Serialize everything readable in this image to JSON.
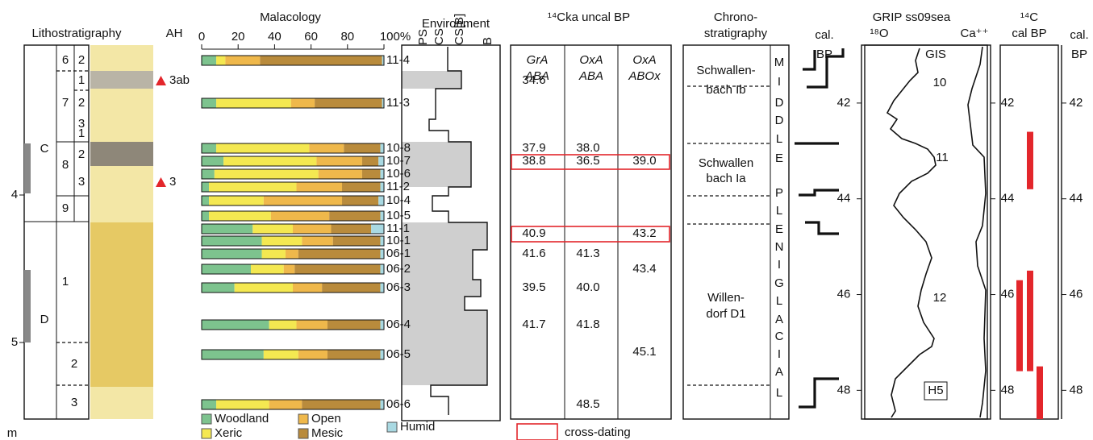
{
  "lithostratigraphy": {
    "title": "Lithostratigraphy",
    "ah_title": "AH",
    "depth_ticks": [
      4,
      5
    ],
    "depth_unit": "m",
    "units": [
      "C",
      "D"
    ],
    "layers": [
      "6",
      "7",
      "8",
      "9",
      "1",
      "2",
      "3"
    ],
    "sublayers": [
      "2",
      "1",
      "2",
      "3",
      "1",
      "2",
      "3"
    ],
    "ah": [
      "3ab",
      "3"
    ]
  },
  "chart_data": {
    "type": "bar",
    "title": "Malacology",
    "orientation": "horizontal",
    "stacked": true,
    "categories": [
      "11-4",
      "11-3",
      "10-8",
      "10-7",
      "10-6",
      "11-2",
      "10-4",
      "10-5",
      "11-1",
      "10-1",
      "06-1",
      "06-2",
      "06-3",
      "06-4",
      "06-5",
      "06-6"
    ],
    "series": [
      {
        "name": "Woodland",
        "color": "#7dc38e",
        "values": [
          8,
          8,
          8,
          12,
          7,
          4,
          4,
          4,
          28,
          33,
          33,
          27,
          18,
          37,
          34,
          8
        ]
      },
      {
        "name": "Xeric",
        "color": "#f4e851",
        "values": [
          5,
          41,
          51,
          51,
          57,
          48,
          30,
          34,
          22,
          22,
          13,
          18,
          32,
          15,
          19,
          29
        ]
      },
      {
        "name": "Open",
        "color": "#efb84b",
        "values": [
          19,
          13,
          19,
          25,
          24,
          25,
          43,
          32,
          21,
          17,
          7,
          6,
          16,
          17,
          16,
          18
        ]
      },
      {
        "name": "Mesic",
        "color": "#b98b3c",
        "values": [
          67,
          37,
          20,
          9,
          10,
          21,
          20,
          28,
          22,
          26,
          45,
          47,
          32,
          29,
          29,
          43
        ]
      },
      {
        "name": "Humid",
        "color": "#a9d9e2",
        "values": [
          1,
          1,
          2,
          3,
          2,
          2,
          3,
          2,
          7,
          2,
          2,
          2,
          2,
          2,
          2,
          2
        ]
      }
    ],
    "xlim": [
      0,
      100
    ],
    "xticks": [
      0,
      20,
      40,
      60,
      80,
      {
        "value": 100,
        "label": "100%"
      }
    ]
  },
  "environment": {
    "title": "Environment",
    "classes": [
      "PS",
      "CS",
      "CS[B]",
      "B"
    ]
  },
  "radiocarbon": {
    "title": "¹⁴Cka uncal BP",
    "columns": [
      [
        "GrA",
        "ABA"
      ],
      [
        "OxA",
        "ABA"
      ],
      [
        "OxA",
        "ABOx"
      ]
    ],
    "column_colors": [
      "#111111",
      "#111111",
      "#e3262b"
    ],
    "rows": [
      [
        34.6,
        null,
        null
      ],
      [
        37.9,
        38.0,
        null
      ],
      [
        38.8,
        36.5,
        39.0
      ],
      [
        40.9,
        null,
        43.2
      ],
      [
        41.6,
        41.3,
        null
      ],
      [
        null,
        null,
        43.4
      ],
      [
        39.5,
        40.0,
        null
      ],
      [
        41.7,
        41.8,
        null
      ],
      [
        null,
        null,
        45.1
      ],
      [
        null,
        48.5,
        null
      ]
    ],
    "legend": "cross-dating"
  },
  "chronostratigraphy": {
    "title": [
      "Chrono-",
      "stratigraphy"
    ],
    "stages": [
      [
        "Schwallen-",
        "bach Ib"
      ],
      [
        "Schwallen",
        "bach Ia"
      ],
      [
        "Willen-",
        "dorf D1"
      ]
    ],
    "period_letters": [
      "M",
      "I",
      "D",
      "D",
      "L",
      "E",
      "P",
      "L",
      "E",
      "N",
      "I",
      "G",
      "L",
      "A",
      "C",
      "I",
      "A",
      "L"
    ]
  },
  "grip": {
    "title": "GRIP ss09sea",
    "axis_label": [
      "cal.",
      "BP"
    ],
    "o18": "¹⁸O",
    "ca": "Ca⁺⁺",
    "gis_label": "GIS",
    "gis": [
      10,
      11,
      12
    ],
    "heinrich": "H5",
    "ylim": [
      40.79,
      48.6
    ],
    "yticks": [
      42,
      44,
      46,
      48
    ]
  },
  "calbp": {
    "title": [
      "¹⁴C",
      "cal BP"
    ],
    "axis_label": [
      "cal.",
      "BP"
    ],
    "color": "#e3262b",
    "ranges": [
      [
        42.6,
        43.8
      ],
      [
        45.7,
        47.6
      ],
      [
        45.5,
        47.6
      ],
      [
        47.5,
        48.6
      ]
    ],
    "ylim": [
      40.79,
      48.6
    ],
    "yticks": [
      42,
      44,
      46,
      48
    ]
  }
}
